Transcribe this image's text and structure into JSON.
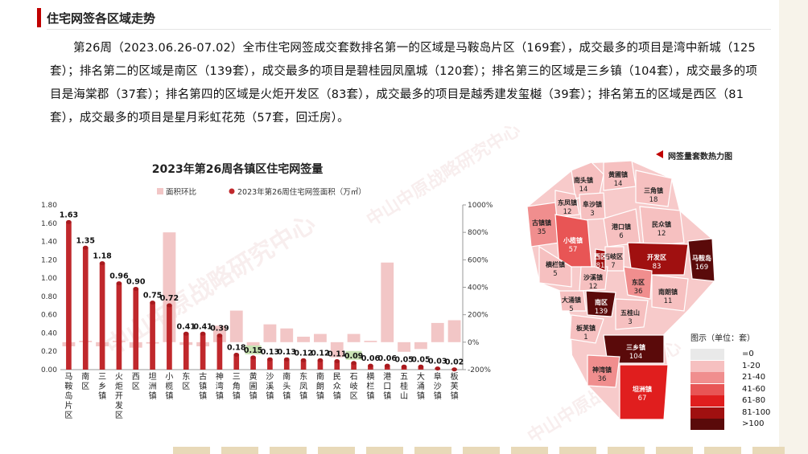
{
  "header": {
    "title": "住宅网签各区域走势"
  },
  "paragraph": "第26周（2023.06.26-07.02）全市住宅网签成交套数排名第一的区域是马鞍岛片区（169套），成交最多的项目是湾中新城（125套）；排名第二的区域是南区（139套），成交最多的项目是碧桂园凤凰城（120套）；排名第三的区域是三乡镇（104套），成交最多的项目是海棠郡（37套）；排名第四的区域是火炬开发区（83套），成交最多的项目是越秀建发玺樾（39套）；排名第五的区域是西区（81套），成交最多的项目是星月彩虹花苑（57套，回迁房）。",
  "watermark": "中山中原战略研究中心",
  "chart_data": {
    "type": "bar",
    "title": "2023年第26周各镇区住宅网签量",
    "categories": [
      "马鞍岛片区",
      "南区",
      "三乡镇",
      "火炬开发区",
      "西区",
      "坦洲镇",
      "小榄镇",
      "东区",
      "古镇镇",
      "神湾镇",
      "三角镇",
      "黄圃镇",
      "沙溪镇",
      "南头镇",
      "东凤镇",
      "南朗镇",
      "民众镇",
      "石岐区",
      "横栏镇",
      "港口镇",
      "五桂山",
      "大涌镇",
      "阜沙镇",
      "板芙镇"
    ],
    "series": [
      {
        "name": "面积环比",
        "axis": "right",
        "values": [
          -30,
          10,
          -30,
          10,
          -40,
          -10,
          800,
          -20,
          -30,
          120,
          230,
          -40,
          130,
          100,
          40,
          60,
          -110,
          60,
          10,
          580,
          -70,
          -50,
          140,
          160
        ]
      },
      {
        "name": "2023年第26周住宅网签面积（万㎡）",
        "axis": "left",
        "values": [
          1.63,
          1.35,
          1.18,
          0.96,
          0.9,
          0.75,
          0.72,
          0.41,
          0.41,
          0.39,
          0.18,
          0.15,
          0.13,
          0.13,
          0.12,
          0.12,
          0.11,
          0.09,
          0.06,
          0.06,
          0.05,
          0.05,
          0.03,
          0.02
        ]
      }
    ],
    "value_labels": [
      "1.63",
      "1.35",
      "1.18",
      "0.96",
      "0.90",
      "0.75",
      "0.72",
      "0.41",
      "0.41",
      "0.39",
      "0.18",
      "0.15",
      "0.13",
      "0.13",
      "0.12",
      "0.12",
      "0.11",
      "0.09",
      "0.06",
      "0.06",
      "0.05",
      "0.05",
      "0.03",
      "0.02"
    ],
    "y_left": {
      "ylim": [
        0,
        1.8
      ],
      "ticks": [
        "0.00",
        "0.20",
        "0.40",
        "0.60",
        "0.80",
        "1.00",
        "1.20",
        "1.40",
        "1.60",
        "1.80"
      ]
    },
    "y_right": {
      "ylim": [
        -200,
        1000
      ],
      "ticks": [
        "-200%",
        "0%",
        "200%",
        "400%",
        "600%",
        "800%",
        "1000%"
      ]
    },
    "legend_position": "top",
    "colors": {
      "bar": "#c0282c",
      "ratio": "#f2c6c6",
      "highlight_label": "#c9e3b4"
    }
  },
  "map": {
    "title": "网签量套数热力图",
    "legend_title": "图示（单位：套）",
    "legend": [
      {
        "label": "=0",
        "color": "#e9e9e9"
      },
      {
        "label": "1-20",
        "color": "#f6c0c0"
      },
      {
        "label": "21-40",
        "color": "#f08e8e"
      },
      {
        "label": "41-60",
        "color": "#e85555"
      },
      {
        "label": "61-80",
        "color": "#e01e1e"
      },
      {
        "label": "81-100",
        "color": "#a01010"
      },
      {
        "label": ">100",
        "color": "#5a0a0a"
      }
    ],
    "regions": [
      {
        "name": "南头镇",
        "value": "14"
      },
      {
        "name": "黄圃镇",
        "value": "14"
      },
      {
        "name": "东凤镇",
        "value": "12"
      },
      {
        "name": "阜沙镇",
        "value": "3"
      },
      {
        "name": "三角镇",
        "value": "18"
      },
      {
        "name": "古镇镇",
        "value": "35"
      },
      {
        "name": "小榄镇",
        "value": "57"
      },
      {
        "name": "港口镇",
        "value": "6"
      },
      {
        "name": "民众镇",
        "value": "12"
      },
      {
        "name": "横栏镇",
        "value": "5"
      },
      {
        "name": "石岐区",
        "value": "7"
      },
      {
        "name": "开发区",
        "value": "83"
      },
      {
        "name": "马鞍岛",
        "value": "169"
      },
      {
        "name": "沙溪镇",
        "value": "12"
      },
      {
        "name": "东区",
        "value": "36"
      },
      {
        "name": "西区",
        "value": "81"
      },
      {
        "name": "大涌镇",
        "value": "5"
      },
      {
        "name": "南区",
        "value": "139"
      },
      {
        "name": "南朗镇",
        "value": "11"
      },
      {
        "name": "五桂山",
        "value": "3"
      },
      {
        "name": "板芙镇",
        "value": "1"
      },
      {
        "name": "三乡镇",
        "value": "104"
      },
      {
        "name": "神湾镇",
        "value": "36"
      },
      {
        "name": "坦洲镇",
        "value": "67"
      }
    ]
  }
}
